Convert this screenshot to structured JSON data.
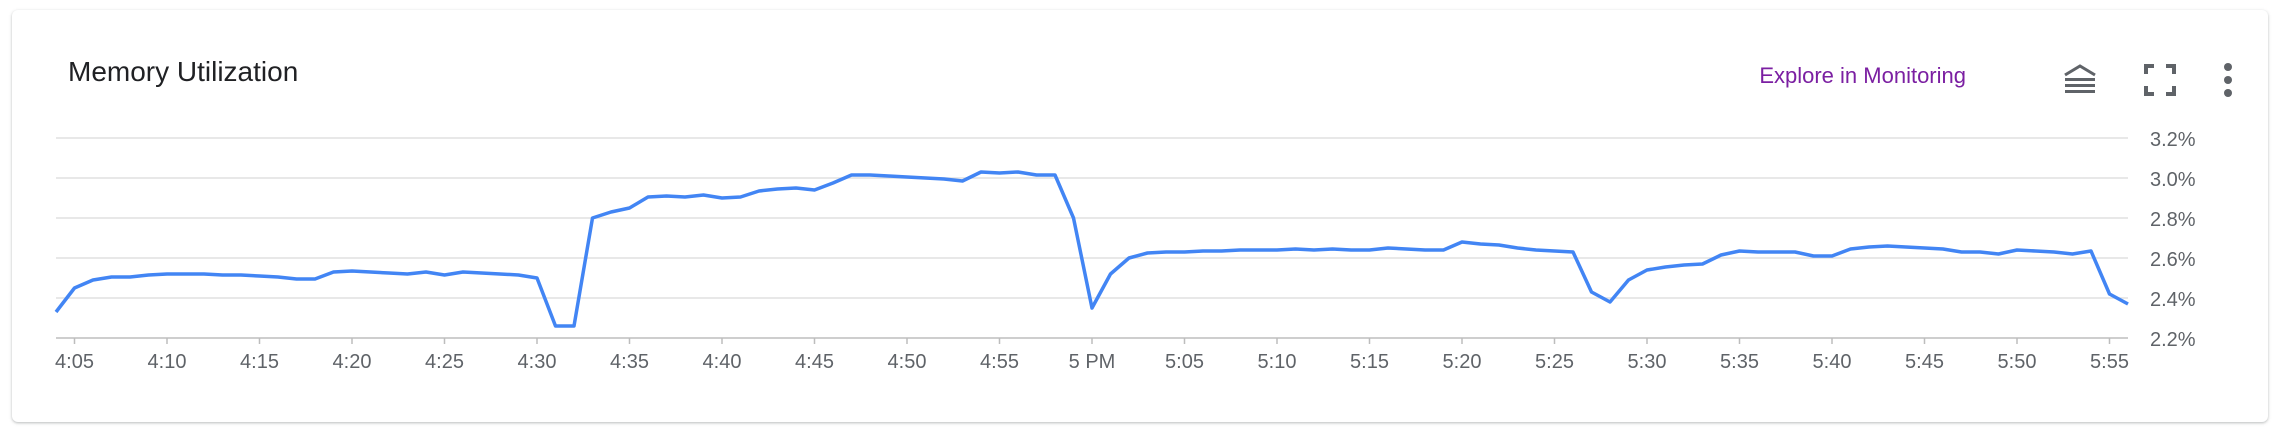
{
  "card": {
    "title": "Memory Utilization",
    "explore_label": "Explore in Monitoring"
  },
  "icons": {
    "legend": "legend-toggle-icon",
    "fullscreen": "fullscreen-icon",
    "more": "more-vert-icon"
  },
  "colors": {
    "line": "#4285f4",
    "link": "#7b1fa2",
    "grid": "#e0e0e0",
    "tick_text": "#5f6368"
  },
  "chart_data": {
    "type": "line",
    "title": "Memory Utilization",
    "xlabel": "",
    "ylabel": "",
    "grid": true,
    "legend": "none",
    "ylim": [
      2.2,
      3.2
    ],
    "y_ticks": [
      2.2,
      2.4,
      2.6,
      2.8,
      3.0,
      3.2
    ],
    "y_tick_labels": [
      "2.2%",
      "2.4%",
      "2.6%",
      "2.8%",
      "3.0%",
      "3.2%"
    ],
    "x_ticks": [
      "4:05",
      "4:10",
      "4:15",
      "4:20",
      "4:25",
      "4:30",
      "4:35",
      "4:40",
      "4:45",
      "4:50",
      "4:55",
      "5 PM",
      "5:05",
      "5:10",
      "5:15",
      "5:20",
      "5:25",
      "5:30",
      "5:35",
      "5:40",
      "5:45",
      "5:50",
      "5:55"
    ],
    "x_start": "4:04",
    "x_end": "5:56",
    "series": [
      {
        "x": [
          "4:04",
          "4:05",
          "4:06",
          "4:07",
          "4:08",
          "4:09",
          "4:10",
          "4:11",
          "4:12",
          "4:13",
          "4:14",
          "4:15",
          "4:16",
          "4:17",
          "4:18",
          "4:19",
          "4:20",
          "4:21",
          "4:22",
          "4:23",
          "4:24",
          "4:25",
          "4:26",
          "4:27",
          "4:28",
          "4:29",
          "4:30",
          "4:31",
          "4:32",
          "4:33",
          "4:34",
          "4:35",
          "4:36",
          "4:37",
          "4:38",
          "4:39",
          "4:40",
          "4:41",
          "4:42",
          "4:43",
          "4:44",
          "4:45",
          "4:46",
          "4:47",
          "4:48",
          "4:49",
          "4:50",
          "4:51",
          "4:52",
          "4:53",
          "4:54",
          "4:55",
          "4:56",
          "4:57",
          "4:58",
          "4:59",
          "5:00",
          "5:01",
          "5:02",
          "5:03",
          "5:04",
          "5:05",
          "5:06",
          "5:07",
          "5:08",
          "5:09",
          "5:10",
          "5:11",
          "5:12",
          "5:13",
          "5:14",
          "5:15",
          "5:16",
          "5:17",
          "5:18",
          "5:19",
          "5:20",
          "5:21",
          "5:22",
          "5:23",
          "5:24",
          "5:25",
          "5:26",
          "5:27",
          "5:28",
          "5:29",
          "5:30",
          "5:31",
          "5:32",
          "5:33",
          "5:34",
          "5:35",
          "5:36",
          "5:37",
          "5:38",
          "5:39",
          "5:40",
          "5:41",
          "5:42",
          "5:43",
          "5:44",
          "5:45",
          "5:46",
          "5:47",
          "5:48",
          "5:49",
          "5:50",
          "5:51",
          "5:52",
          "5:53",
          "5:54",
          "5:55",
          "5:56"
        ],
        "values": [
          2.33,
          2.45,
          2.49,
          2.505,
          2.505,
          2.515,
          2.52,
          2.52,
          2.52,
          2.515,
          2.515,
          2.51,
          2.505,
          2.495,
          2.495,
          2.53,
          2.535,
          2.53,
          2.525,
          2.52,
          2.53,
          2.515,
          2.53,
          2.525,
          2.52,
          2.515,
          2.5,
          2.26,
          2.26,
          2.8,
          2.83,
          2.85,
          2.905,
          2.91,
          2.905,
          2.915,
          2.9,
          2.905,
          2.935,
          2.945,
          2.95,
          2.94,
          2.975,
          3.015,
          3.015,
          3.01,
          3.005,
          3.0,
          2.995,
          2.985,
          3.03,
          3.025,
          3.03,
          3.015,
          3.015,
          2.8,
          2.35,
          2.52,
          2.6,
          2.625,
          2.63,
          2.63,
          2.635,
          2.635,
          2.64,
          2.64,
          2.64,
          2.645,
          2.64,
          2.645,
          2.64,
          2.64,
          2.65,
          2.645,
          2.64,
          2.64,
          2.68,
          2.67,
          2.665,
          2.65,
          2.64,
          2.635,
          2.63,
          2.43,
          2.38,
          2.49,
          2.54,
          2.555,
          2.565,
          2.57,
          2.615,
          2.635,
          2.63,
          2.63,
          2.63,
          2.61,
          2.61,
          2.645,
          2.655,
          2.66,
          2.655,
          2.65,
          2.645,
          2.63,
          2.63,
          2.62,
          2.64,
          2.635,
          2.63,
          2.62,
          2.635,
          2.42,
          2.37
        ]
      }
    ]
  }
}
